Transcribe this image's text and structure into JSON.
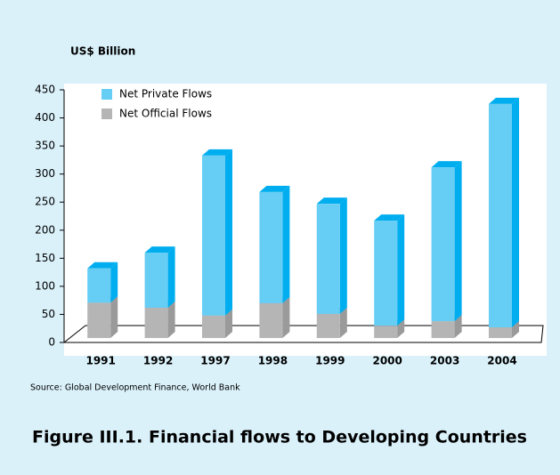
{
  "chart_data": {
    "type": "bar3d_stacked",
    "title": "Figure III.1. Financial flows to Developing Countries",
    "y_label": "US$ Billion",
    "source": "Source: Global Development Finance, World Bank",
    "categories": [
      "1991",
      "1992",
      "1997",
      "1998",
      "1999",
      "2000",
      "2003",
      "2004"
    ],
    "series": [
      {
        "name": "Net Official Flows",
        "color": "#b5b5b5",
        "side_color": "#9a9a9a",
        "values": [
          63,
          54,
          40,
          62,
          43,
          22,
          30,
          19
        ]
      },
      {
        "name": "Net Private Flows",
        "color": "#66cdf5",
        "side_color": "#00aeef",
        "values": [
          61,
          98,
          285,
          198,
          196,
          187,
          274,
          398
        ]
      }
    ],
    "legend_order": [
      1,
      0
    ],
    "ylim": [
      0,
      450
    ],
    "yticks": [
      0,
      50,
      100,
      150,
      200,
      250,
      300,
      350,
      400,
      450
    ],
    "grid": false
  }
}
